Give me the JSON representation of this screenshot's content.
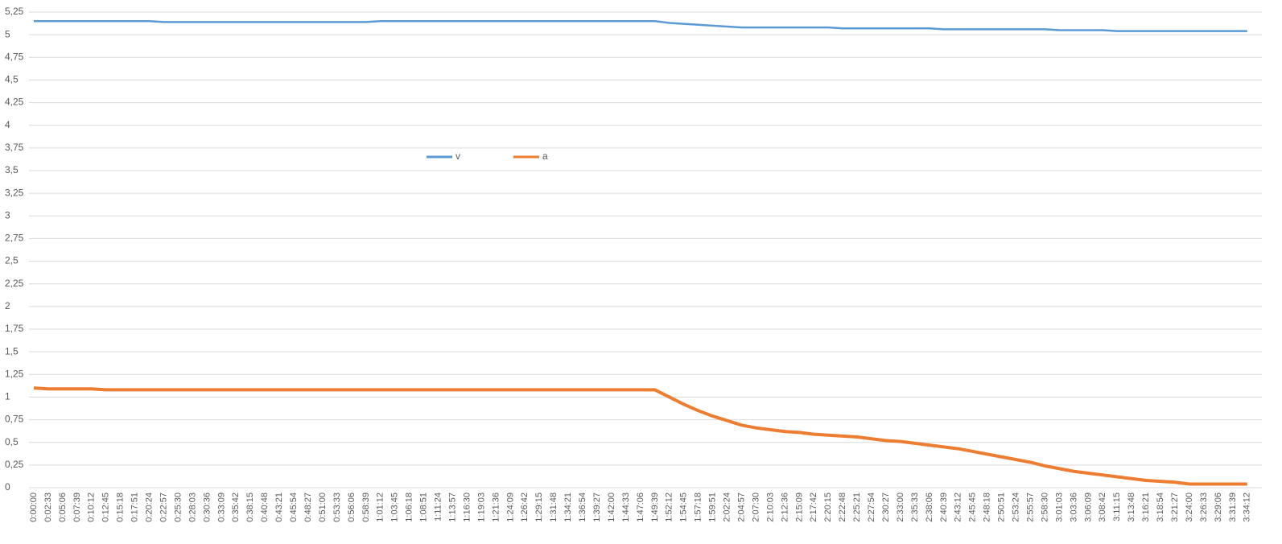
{
  "chart_data": {
    "type": "line",
    "categories": [
      "0:00:00",
      "0:02:33",
      "0:05:06",
      "0:07:39",
      "0:10:12",
      "0:12:45",
      "0:15:18",
      "0:17:51",
      "0:20:24",
      "0:22:57",
      "0:25:30",
      "0:28:03",
      "0:30:36",
      "0:33:09",
      "0:35:42",
      "0:38:15",
      "0:40:48",
      "0:43:21",
      "0:45:54",
      "0:48:27",
      "0:51:00",
      "0:53:33",
      "0:56:06",
      "0:58:39",
      "1:01:12",
      "1:03:45",
      "1:06:18",
      "1:08:51",
      "1:11:24",
      "1:13:57",
      "1:16:30",
      "1:19:03",
      "1:21:36",
      "1:24:09",
      "1:26:42",
      "1:29:15",
      "1:31:48",
      "1:34:21",
      "1:36:54",
      "1:39:27",
      "1:42:00",
      "1:44:33",
      "1:47:06",
      "1:49:39",
      "1:52:12",
      "1:54:45",
      "1:57:18",
      "1:59:51",
      "2:02:24",
      "2:04:57",
      "2:07:30",
      "2:10:03",
      "2:12:36",
      "2:15:09",
      "2:17:42",
      "2:20:15",
      "2:22:48",
      "2:25:21",
      "2:27:54",
      "2:30:27",
      "2:33:00",
      "2:35:33",
      "2:38:06",
      "2:40:39",
      "2:43:12",
      "2:45:45",
      "2:48:18",
      "2:50:51",
      "2:53:24",
      "2:55:57",
      "2:58:30",
      "3:01:03",
      "3:03:36",
      "3:06:09",
      "3:08:42",
      "3:11:15",
      "3:13:48",
      "3:16:21",
      "3:18:54",
      "3:21:27",
      "3:24:00",
      "3:26:33",
      "3:29:06",
      "3:31:39",
      "3:34:12"
    ],
    "series": [
      {
        "name": "v",
        "color": "#5b9bd5",
        "values": [
          5.15,
          5.15,
          5.15,
          5.15,
          5.15,
          5.15,
          5.15,
          5.15,
          5.15,
          5.14,
          5.14,
          5.14,
          5.14,
          5.14,
          5.14,
          5.14,
          5.14,
          5.14,
          5.14,
          5.14,
          5.14,
          5.14,
          5.14,
          5.14,
          5.15,
          5.15,
          5.15,
          5.15,
          5.15,
          5.15,
          5.15,
          5.15,
          5.15,
          5.15,
          5.15,
          5.15,
          5.15,
          5.15,
          5.15,
          5.15,
          5.15,
          5.15,
          5.15,
          5.15,
          5.13,
          5.12,
          5.11,
          5.1,
          5.09,
          5.08,
          5.08,
          5.08,
          5.08,
          5.08,
          5.08,
          5.08,
          5.07,
          5.07,
          5.07,
          5.07,
          5.07,
          5.07,
          5.07,
          5.06,
          5.06,
          5.06,
          5.06,
          5.06,
          5.06,
          5.06,
          5.06,
          5.05,
          5.05,
          5.05,
          5.05,
          5.04,
          5.04,
          5.04,
          5.04,
          5.04,
          5.04,
          5.04,
          5.04,
          5.04,
          5.04
        ]
      },
      {
        "name": "a",
        "color": "#ed7d31",
        "values": [
          1.1,
          1.09,
          1.09,
          1.09,
          1.09,
          1.08,
          1.08,
          1.08,
          1.08,
          1.08,
          1.08,
          1.08,
          1.08,
          1.08,
          1.08,
          1.08,
          1.08,
          1.08,
          1.08,
          1.08,
          1.08,
          1.08,
          1.08,
          1.08,
          1.08,
          1.08,
          1.08,
          1.08,
          1.08,
          1.08,
          1.08,
          1.08,
          1.08,
          1.08,
          1.08,
          1.08,
          1.08,
          1.08,
          1.08,
          1.08,
          1.08,
          1.08,
          1.08,
          1.08,
          1.0,
          0.92,
          0.85,
          0.79,
          0.74,
          0.69,
          0.66,
          0.64,
          0.62,
          0.61,
          0.59,
          0.58,
          0.57,
          0.56,
          0.54,
          0.52,
          0.51,
          0.49,
          0.47,
          0.45,
          0.43,
          0.4,
          0.37,
          0.34,
          0.31,
          0.28,
          0.24,
          0.21,
          0.18,
          0.16,
          0.14,
          0.12,
          0.1,
          0.08,
          0.07,
          0.06,
          0.04,
          0.04,
          0.04,
          0.04,
          0.04
        ]
      }
    ],
    "ylim": [
      0,
      5.25
    ],
    "yticks": [
      0,
      {
        "value": 0.25,
        "label": "0,25"
      },
      {
        "value": 0.5,
        "label": "0,5"
      },
      {
        "value": 0.75,
        "label": "0,75"
      },
      1,
      {
        "value": 1.25,
        "label": "1,25"
      },
      {
        "value": 1.5,
        "label": "1,5"
      },
      {
        "value": 1.75,
        "label": "1,75"
      },
      2,
      {
        "value": 2.25,
        "label": "2,25"
      },
      {
        "value": 2.5,
        "label": "2,5"
      },
      {
        "value": 2.75,
        "label": "2,75"
      },
      3,
      {
        "value": 3.25,
        "label": "3,25"
      },
      {
        "value": 3.5,
        "label": "3,5"
      },
      {
        "value": 3.75,
        "label": "3,75"
      },
      4,
      {
        "value": 4.25,
        "label": "4,25"
      },
      {
        "value": 4.5,
        "label": "4,5"
      },
      {
        "value": 4.75,
        "label": "4,75"
      },
      5,
      {
        "value": 5.25,
        "label": "5,25"
      }
    ],
    "grid": true,
    "legend": "center"
  }
}
